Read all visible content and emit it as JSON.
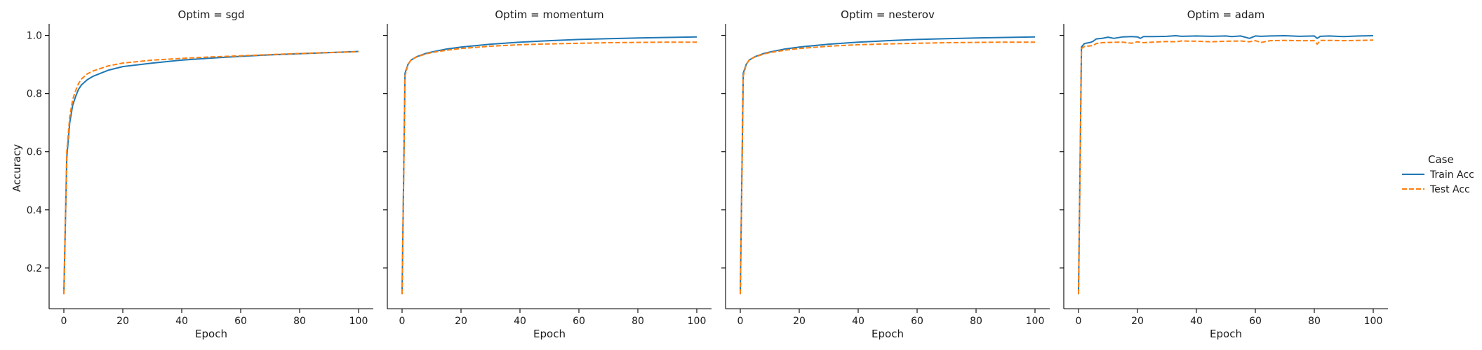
{
  "chart_data": {
    "type": "line",
    "layout": "facet-grid",
    "facet_var": "Optim",
    "ylabel": "Accuracy",
    "xlabel": "Epoch",
    "xlim": [
      -5,
      105
    ],
    "ylim": [
      0.06,
      1.04
    ],
    "xticks": [
      0,
      20,
      40,
      60,
      80,
      100
    ],
    "yticks": [
      0.2,
      0.4,
      0.6,
      0.8,
      1.0
    ],
    "ytick_labels": [
      "0.2",
      "0.4",
      "0.6",
      "0.8",
      "1.0"
    ],
    "grid": false,
    "legend": {
      "title": "Case",
      "placement": "right",
      "entries": [
        {
          "label": "Train Acc",
          "color": "#1f77b4",
          "dash": "solid"
        },
        {
          "label": "Test Acc",
          "color": "#ff7f0e",
          "dash": "dashed"
        }
      ]
    },
    "panels": [
      {
        "title": "Optim = sgd",
        "series": [
          {
            "name": "Train Acc",
            "x": [
              0,
              1,
              2,
              3,
              4,
              5,
              6,
              8,
              10,
              15,
              20,
              30,
              40,
              50,
              60,
              70,
              80,
              90,
              100
            ],
            "y": [
              0.11,
              0.58,
              0.7,
              0.76,
              0.79,
              0.815,
              0.83,
              0.848,
              0.86,
              0.88,
              0.893,
              0.905,
              0.915,
              0.922,
              0.928,
              0.933,
              0.937,
              0.941,
              0.945
            ]
          },
          {
            "name": "Test Acc",
            "x": [
              0,
              1,
              2,
              3,
              4,
              5,
              6,
              8,
              10,
              15,
              20,
              30,
              40,
              50,
              60,
              70,
              80,
              90,
              100
            ],
            "y": [
              0.11,
              0.6,
              0.72,
              0.78,
              0.81,
              0.835,
              0.85,
              0.868,
              0.878,
              0.895,
              0.905,
              0.915,
              0.921,
              0.926,
              0.93,
              0.934,
              0.938,
              0.941,
              0.944
            ]
          }
        ]
      },
      {
        "title": "Optim = momentum",
        "series": [
          {
            "name": "Train Acc",
            "x": [
              0,
              1,
              2,
              3,
              5,
              8,
              10,
              15,
              20,
              30,
              40,
              50,
              60,
              70,
              80,
              90,
              100
            ],
            "y": [
              0.11,
              0.87,
              0.9,
              0.915,
              0.927,
              0.938,
              0.943,
              0.953,
              0.96,
              0.97,
              0.977,
              0.982,
              0.986,
              0.989,
              0.991,
              0.993,
              0.995
            ]
          },
          {
            "name": "Test Acc",
            "x": [
              0,
              1,
              2,
              3,
              5,
              8,
              10,
              15,
              20,
              30,
              40,
              50,
              60,
              70,
              80,
              90,
              100
            ],
            "y": [
              0.11,
              0.86,
              0.9,
              0.915,
              0.926,
              0.936,
              0.941,
              0.949,
              0.955,
              0.963,
              0.968,
              0.971,
              0.973,
              0.975,
              0.976,
              0.977,
              0.977
            ]
          }
        ]
      },
      {
        "title": "Optim = nesterov",
        "series": [
          {
            "name": "Train Acc",
            "x": [
              0,
              1,
              2,
              3,
              5,
              8,
              10,
              15,
              20,
              30,
              40,
              50,
              60,
              70,
              80,
              90,
              100
            ],
            "y": [
              0.11,
              0.87,
              0.9,
              0.915,
              0.927,
              0.938,
              0.943,
              0.953,
              0.96,
              0.97,
              0.977,
              0.982,
              0.986,
              0.989,
              0.991,
              0.993,
              0.995
            ]
          },
          {
            "name": "Test Acc",
            "x": [
              0,
              1,
              2,
              3,
              5,
              8,
              10,
              15,
              20,
              30,
              40,
              50,
              60,
              70,
              80,
              90,
              100
            ],
            "y": [
              0.11,
              0.86,
              0.9,
              0.915,
              0.926,
              0.936,
              0.941,
              0.949,
              0.955,
              0.963,
              0.968,
              0.971,
              0.973,
              0.975,
              0.976,
              0.977,
              0.977
            ]
          }
        ]
      },
      {
        "title": "Optim = adam",
        "series": [
          {
            "name": "Train Acc",
            "x": [
              0,
              1,
              2,
              4,
              5,
              6,
              8,
              10,
              12,
              15,
              18,
              20,
              21,
              22,
              25,
              30,
              33,
              35,
              40,
              45,
              50,
              52,
              55,
              58,
              60,
              62,
              65,
              70,
              75,
              80,
              81,
              82,
              85,
              90,
              95,
              100
            ],
            "y": [
              0.11,
              0.96,
              0.972,
              0.976,
              0.98,
              0.988,
              0.99,
              0.994,
              0.99,
              0.995,
              0.996,
              0.995,
              0.99,
              0.996,
              0.996,
              0.997,
              0.999,
              0.997,
              0.998,
              0.997,
              0.998,
              0.996,
              0.998,
              0.99,
              0.998,
              0.997,
              0.998,
              0.999,
              0.997,
              0.998,
              0.99,
              0.997,
              0.998,
              0.996,
              0.998,
              0.999
            ]
          },
          {
            "name": "Test Acc",
            "x": [
              0,
              1,
              2,
              5,
              6,
              8,
              10,
              15,
              18,
              20,
              22,
              25,
              30,
              33,
              35,
              40,
              45,
              50,
              55,
              58,
              60,
              62,
              65,
              70,
              75,
              80,
              81,
              82,
              85,
              90,
              95,
              100
            ],
            "y": [
              0.11,
              0.955,
              0.962,
              0.965,
              0.972,
              0.975,
              0.976,
              0.977,
              0.973,
              0.978,
              0.975,
              0.977,
              0.979,
              0.978,
              0.981,
              0.98,
              0.978,
              0.98,
              0.981,
              0.978,
              0.982,
              0.976,
              0.982,
              0.983,
              0.982,
              0.982,
              0.97,
              0.983,
              0.983,
              0.982,
              0.983,
              0.984
            ]
          }
        ]
      }
    ]
  }
}
